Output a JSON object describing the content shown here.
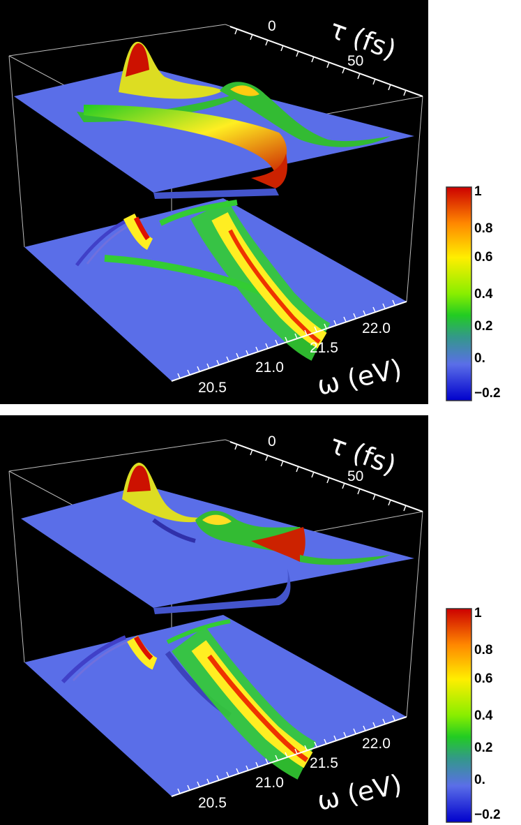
{
  "chart_data": [
    {
      "type": "surface",
      "x_axis": {
        "label": "ω (eV)",
        "ticks": [
          "20.5",
          "21.0",
          "21.5",
          "22.0"
        ]
      },
      "y_axis": {
        "label": "τ (fs)",
        "ticks": [
          "0",
          "50"
        ]
      },
      "colorbar": {
        "ticks": [
          "1",
          "0.8",
          "0.6",
          "0.4",
          "0.2",
          "0.",
          "−0.2"
        ],
        "range": [
          -0.2,
          1
        ]
      },
      "features": {
        "bright_diagonal": "21.2 eV",
        "grid": false
      }
    },
    {
      "type": "surface",
      "x_axis": {
        "label": "ω (eV)",
        "ticks": [
          "20.5",
          "21.0",
          "21.5",
          "22.0"
        ]
      },
      "y_axis": {
        "label": "τ (fs)",
        "ticks": [
          "0",
          "50"
        ]
      },
      "colorbar": {
        "ticks": [
          "1",
          "0.8",
          "0.6",
          "0.4",
          "0.2",
          "0.",
          "−0.2"
        ],
        "range": [
          -0.2,
          1
        ]
      },
      "features": {
        "bright_diagonal": "21.2 eV",
        "grid": false
      }
    }
  ]
}
